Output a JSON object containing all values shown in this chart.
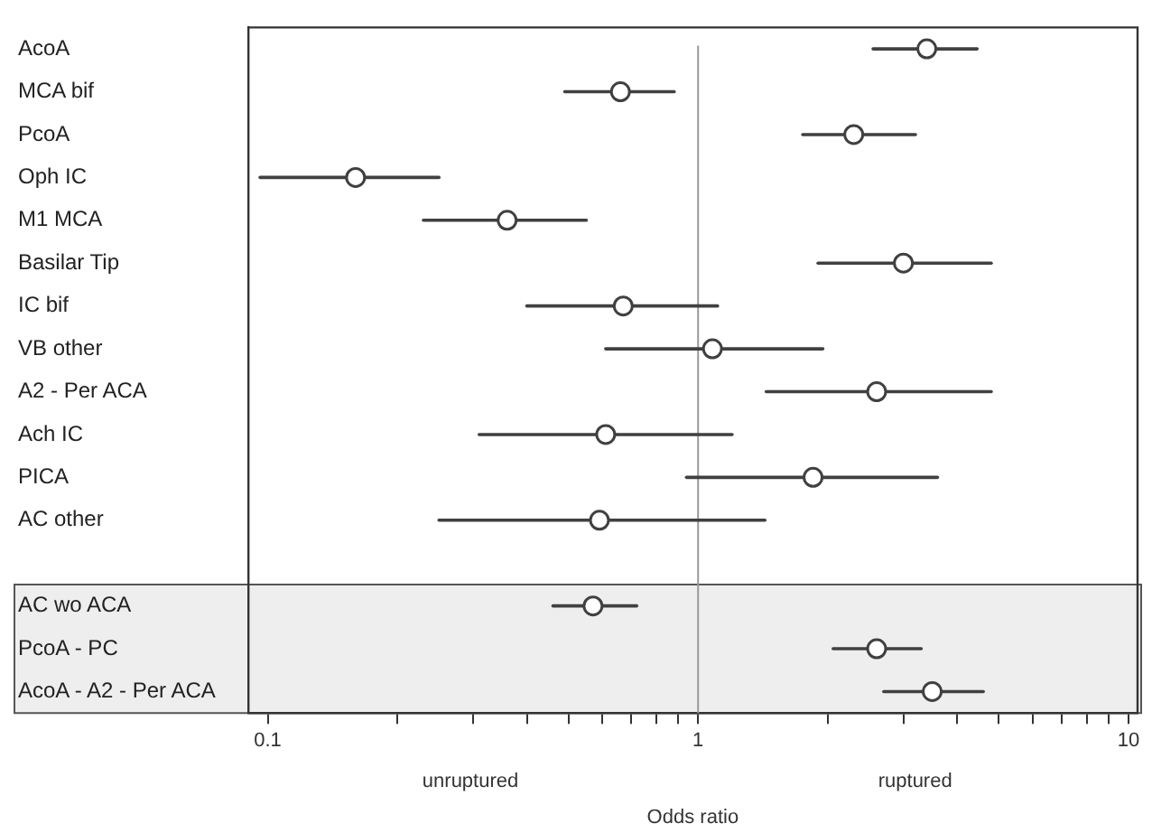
{
  "chart_data": {
    "type": "scatter",
    "orientation": "horizontal",
    "xlabel": "Odds ratio",
    "categories": [
      "AcoA",
      "MCA bif",
      "PcoA",
      "Oph IC",
      "M1 MCA",
      "Basilar Tip",
      "IC bif",
      "VB other",
      "A2 - Per ACA",
      "Ach IC",
      "PICA",
      "AC other",
      null,
      "AC wo ACA",
      "PcoA - PC",
      "AcoA - A2 - Per ACA"
    ],
    "series": [
      {
        "color": "#404040",
        "values": [
          3.4,
          0.66,
          2.3,
          0.16,
          0.36,
          3.0,
          0.67,
          1.08,
          2.6,
          0.61,
          1.85,
          0.59,
          null,
          0.57,
          2.6,
          3.5
        ],
        "errors": [
          [
            2.55,
            4.45
          ],
          [
            0.49,
            0.88
          ],
          [
            1.75,
            3.2
          ],
          [
            0.096,
            0.25
          ],
          [
            0.23,
            0.55
          ],
          [
            1.9,
            4.8
          ],
          [
            0.4,
            1.11
          ],
          [
            0.61,
            1.95
          ],
          [
            1.44,
            4.8
          ],
          [
            0.31,
            1.2
          ],
          [
            0.94,
            3.6
          ],
          [
            0.25,
            1.43
          ],
          null,
          [
            0.46,
            0.72
          ],
          [
            2.06,
            3.3
          ],
          [
            2.7,
            4.6
          ]
        ]
      }
    ],
    "log": "x",
    "xlim": [
      0.09,
      10.5
    ],
    "xticks": [
      0.1,
      {
        "value": 0.2,
        "label": null
      },
      {
        "value": 0.3,
        "label": null
      },
      {
        "value": 0.4,
        "label": null
      },
      {
        "value": 0.5,
        "label": null
      },
      {
        "value": 0.6,
        "label": null
      },
      {
        "value": 0.7,
        "label": null
      },
      {
        "value": 0.8,
        "label": null
      },
      {
        "value": 0.9,
        "label": null
      },
      1,
      {
        "value": 2,
        "label": null
      },
      {
        "value": 3,
        "label": null
      },
      {
        "value": 4,
        "label": null
      },
      {
        "value": 5,
        "label": null
      },
      {
        "value": 6,
        "label": null
      },
      {
        "value": 7,
        "label": null
      },
      {
        "value": 8,
        "label": null
      },
      {
        "value": 9,
        "label": null
      },
      10
    ],
    "ref_lines": [
      {
        "axis": "x",
        "value": 1,
        "color": "#999999"
      }
    ],
    "bands": [
      {
        "axis": "y",
        "from": "AC wo ACA",
        "to": "AcoA - A2 - Per ACA",
        "color": "#eeeeee"
      }
    ],
    "annotations": [
      "unruptured",
      "ruptured"
    ],
    "marker": "circle",
    "grid": false,
    "legend": false
  }
}
